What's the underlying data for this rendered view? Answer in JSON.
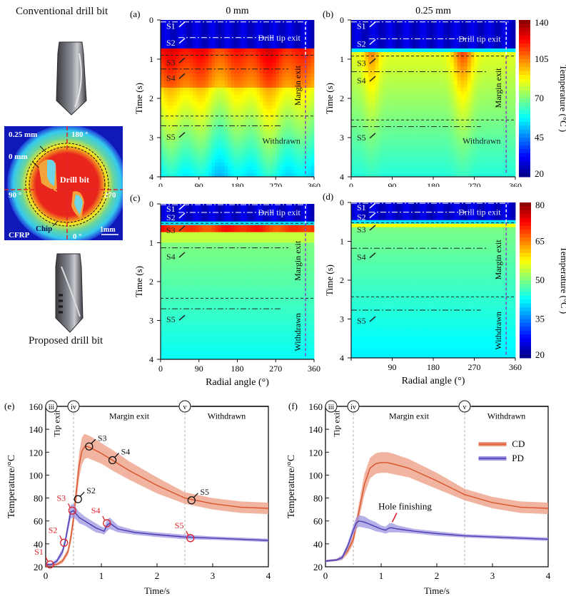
{
  "left_panel": {
    "conventional_label": "Conventional drill bit",
    "proposed_label": "Proposed drill bit",
    "thermal_image": {
      "labels": {
        "ring_outer": "0.25 mm",
        "ring_inner": "0 mm",
        "top_angle": "180 °",
        "left_angle": "90 °",
        "right_angle": "270",
        "bottom_angle": "0 °",
        "center": "Drill  bit",
        "chip": "Chip",
        "material": "CFRP",
        "scale": "1mm"
      }
    }
  },
  "heatmaps": [
    {
      "id": "a",
      "panel_label": "(a)",
      "title": "0 mm",
      "xlabel": "",
      "ylabel": "Time (s)",
      "show_x_zero": true,
      "x_ticks": [
        "0",
        "90",
        "180",
        "270",
        "360"
      ],
      "y_ticks": [
        "0",
        "1",
        "2",
        "3",
        "4"
      ],
      "phase_labels": {
        "tip": "Drill tip exit",
        "margin": "Margin exit",
        "withdrawn": "Withdrawn"
      },
      "markers": [
        "S1",
        "S2",
        "S3",
        "S4",
        "S5"
      ],
      "lines": {
        "s1": 0.05,
        "s2": 0.45,
        "dash1": 0.9,
        "s4": 1.25,
        "dash2": 2.45,
        "s5": 2.7
      },
      "hot_onset": 0.75,
      "peak": "high",
      "colorbar": null
    },
    {
      "id": "b",
      "panel_label": "(b)",
      "title": "0.25 mm",
      "xlabel": "",
      "ylabel": "Time (s)",
      "show_x_zero": true,
      "x_ticks": [
        "0",
        "90",
        "180",
        "270",
        "360"
      ],
      "y_ticks": [
        "0",
        "1",
        "2",
        "3",
        "4"
      ],
      "phase_labels": {
        "tip": "Drill tip exit",
        "margin": "Margin exit",
        "withdrawn": "Withdrawn"
      },
      "markers": [
        "S1",
        "S2",
        "S3",
        "S4",
        "S5"
      ],
      "lines": {
        "s1": 0.05,
        "s2": 0.48,
        "dash1": 0.92,
        "s4": 1.32,
        "dash2": 2.55,
        "s5": 2.72
      },
      "hot_onset": 0.8,
      "peak": "mid",
      "colorbar": {
        "ticks": [
          "140",
          "105",
          "70",
          "45",
          "20"
        ],
        "label": "Temperature (°C )",
        "min": 20,
        "max": 140
      }
    },
    {
      "id": "c",
      "panel_label": "(c)",
      "title": "",
      "xlabel": "Radial angle (°)",
      "ylabel": "Time (s)",
      "show_x_zero": true,
      "x_ticks": [
        "0",
        "90",
        "180",
        "270",
        "360"
      ],
      "y_ticks": [
        "0",
        "1",
        "2",
        "3",
        "4"
      ],
      "phase_labels": {
        "tip": "Drill tip exit",
        "margin": "Margin exit",
        "withdrawn": "Withdrawn"
      },
      "markers": [
        "S1",
        "S2",
        "S3",
        "S4",
        "S5"
      ],
      "lines": {
        "s1": 0.02,
        "s2": 0.22,
        "dash1": 0.5,
        "s4": 1.13,
        "dash2": 2.43,
        "s5": 2.7
      },
      "hot_onset": 0.5,
      "peak": "band",
      "colorbar": null
    },
    {
      "id": "d",
      "panel_label": "(d)",
      "title": "",
      "xlabel": "Radial angle (°)",
      "ylabel": "Time (s)",
      "show_x_zero": false,
      "x_ticks": [
        "",
        "90",
        "180",
        "270",
        "360"
      ],
      "y_ticks": [
        "0",
        "1",
        "2",
        "3",
        "4"
      ],
      "phase_labels": {
        "tip": "Drill tip exit",
        "margin": "Margin exit",
        "withdrawn": "Withdrawn"
      },
      "markers": [
        "S1",
        "S2",
        "S3",
        "S4",
        "S5"
      ],
      "lines": {
        "s1": 0.02,
        "s2": 0.25,
        "dash1": 0.52,
        "s4": 1.18,
        "dash2": 2.43,
        "s5": 2.77
      },
      "hot_onset": 0.52,
      "peak": "low",
      "colorbar": {
        "ticks": [
          "80",
          "65",
          "50",
          "35",
          "20"
        ],
        "label": "Temperature (°C )",
        "min": 20,
        "max": 80
      }
    }
  ],
  "chart_data": [
    {
      "id": "e",
      "type": "line",
      "panel_label": "(e)",
      "xlabel": "Time/s",
      "ylabel": "Temperature/°C",
      "xlim": [
        0,
        4
      ],
      "ylim": [
        20,
        160
      ],
      "x_ticks": [
        0,
        1,
        2,
        3,
        4
      ],
      "y_ticks": [
        20,
        40,
        60,
        80,
        100,
        120,
        140,
        160
      ],
      "phases": {
        "markers": [
          "iii",
          "iv",
          "v"
        ],
        "marker_x": [
          0,
          0.5,
          2.5
        ],
        "labels": [
          "Tip exit",
          "Margin exit",
          "Withdrawn"
        ]
      },
      "series": [
        {
          "name": "CD",
          "color": "#d9532b",
          "band_color": "#eb9b80",
          "x": [
            0,
            0.2,
            0.3,
            0.4,
            0.45,
            0.5,
            0.55,
            0.6,
            0.65,
            0.7,
            0.75,
            0.8,
            1.0,
            1.2,
            1.5,
            2.0,
            2.5,
            3.0,
            3.5,
            4.0
          ],
          "y": [
            21,
            22,
            25,
            33,
            45,
            62,
            85,
            108,
            121,
            125,
            125,
            124,
            119,
            113,
            104,
            91,
            80,
            75,
            72,
            71
          ],
          "band": [
            1,
            1,
            2,
            3,
            5,
            7,
            9,
            11,
            12,
            11,
            10,
            10,
            9,
            9,
            8,
            7,
            5,
            5,
            5,
            5
          ]
        },
        {
          "name": "PD",
          "color": "#4b3ab0",
          "band_color": "#9d95e0",
          "x": [
            0,
            0.1,
            0.2,
            0.3,
            0.35,
            0.4,
            0.45,
            0.5,
            0.55,
            0.6,
            0.7,
            0.8,
            0.9,
            1.0,
            1.05,
            1.1,
            1.15,
            1.3,
            1.6,
            2.0,
            2.5,
            3.0,
            3.5,
            4.0
          ],
          "y": [
            22,
            22,
            25,
            33,
            42,
            55,
            68,
            69,
            66,
            63,
            60,
            57,
            54,
            52,
            51,
            56,
            58,
            53,
            50,
            48,
            46,
            45,
            44,
            43
          ],
          "band": [
            1,
            1,
            2,
            3,
            4,
            5,
            6,
            6,
            5,
            5,
            4,
            4,
            4,
            3,
            3,
            5,
            5,
            3,
            2,
            2,
            2,
            1.5,
            1.5,
            1.5
          ]
        }
      ],
      "annotations": [
        {
          "label": "S1",
          "series": "PD",
          "x": 0.08,
          "y": 22,
          "color": "#e0202a"
        },
        {
          "label": "S2",
          "series": "PD",
          "x": 0.33,
          "y": 41,
          "color": "#e0202a"
        },
        {
          "label": "S3",
          "series": "PD",
          "x": 0.48,
          "y": 69,
          "color": "#e0202a"
        },
        {
          "label": "S4",
          "series": "PD",
          "x": 1.1,
          "y": 58,
          "color": "#e0202a"
        },
        {
          "label": "S5",
          "series": "PD",
          "x": 2.6,
          "y": 45,
          "color": "#e0202a"
        },
        {
          "label": "S2",
          "series": "CD",
          "x": 0.58,
          "y": 79,
          "color": "#111111"
        },
        {
          "label": "S3",
          "series": "CD",
          "x": 0.78,
          "y": 125,
          "color": "#111111"
        },
        {
          "label": "S4",
          "series": "CD",
          "x": 1.2,
          "y": 113,
          "color": "#111111"
        },
        {
          "label": "S5",
          "series": "CD",
          "x": 2.62,
          "y": 78,
          "color": "#111111"
        }
      ],
      "legend": null
    },
    {
      "id": "f",
      "type": "line",
      "panel_label": "(f)",
      "xlabel": "Time/s",
      "ylabel": "Temperature/°C",
      "xlim": [
        0,
        4
      ],
      "ylim": [
        20,
        160
      ],
      "x_ticks": [
        0,
        1,
        2,
        3,
        4
      ],
      "y_ticks": [
        20,
        40,
        60,
        80,
        100,
        120,
        140,
        160
      ],
      "phases": {
        "markers": [
          "iii",
          "iv",
          "v"
        ],
        "marker_x": [
          0,
          0.5,
          2.5
        ],
        "labels": [
          "Tip exit",
          "Margin exit",
          "Withdrawn"
        ]
      },
      "series": [
        {
          "name": "CD",
          "color": "#d9532b",
          "band_color": "#eb9b80",
          "x": [
            0,
            0.2,
            0.3,
            0.4,
            0.5,
            0.6,
            0.7,
            0.8,
            0.9,
            1.0,
            1.1,
            1.2,
            1.5,
            2.0,
            2.5,
            3.0,
            3.5,
            4.0
          ],
          "y": [
            25,
            26,
            28,
            34,
            44,
            68,
            92,
            106,
            110,
            111,
            111,
            110,
            106,
            95,
            83,
            76,
            72,
            71
          ],
          "band": [
            1,
            1,
            2,
            3,
            4,
            7,
            9,
            9,
            9,
            9,
            9,
            9,
            8,
            7,
            5,
            5,
            5,
            5
          ]
        },
        {
          "name": "PD",
          "color": "#4b3ab0",
          "band_color": "#9d95e0",
          "x": [
            0,
            0.2,
            0.3,
            0.4,
            0.5,
            0.55,
            0.6,
            0.7,
            0.8,
            0.9,
            1.0,
            1.08,
            1.15,
            1.2,
            1.3,
            1.6,
            2.0,
            2.5,
            3.0,
            3.5,
            4.0
          ],
          "y": [
            25,
            26,
            28,
            38,
            52,
            58,
            60,
            59,
            57,
            55,
            53,
            52,
            54,
            54,
            53,
            51,
            49,
            47,
            46,
            45,
            44
          ],
          "band": [
            1,
            1,
            2,
            3,
            4,
            5,
            5,
            5,
            4,
            4,
            3,
            3,
            4,
            4,
            3,
            2,
            2,
            1.5,
            1.5,
            1.5,
            1.5
          ]
        }
      ],
      "annotations": [
        {
          "label": "Hole finishing",
          "series": "PD",
          "x": 1.2,
          "y": 57,
          "color": "#e0202a"
        }
      ],
      "legend": {
        "position": "top-right",
        "entries": [
          "CD",
          "PD"
        ]
      }
    }
  ]
}
